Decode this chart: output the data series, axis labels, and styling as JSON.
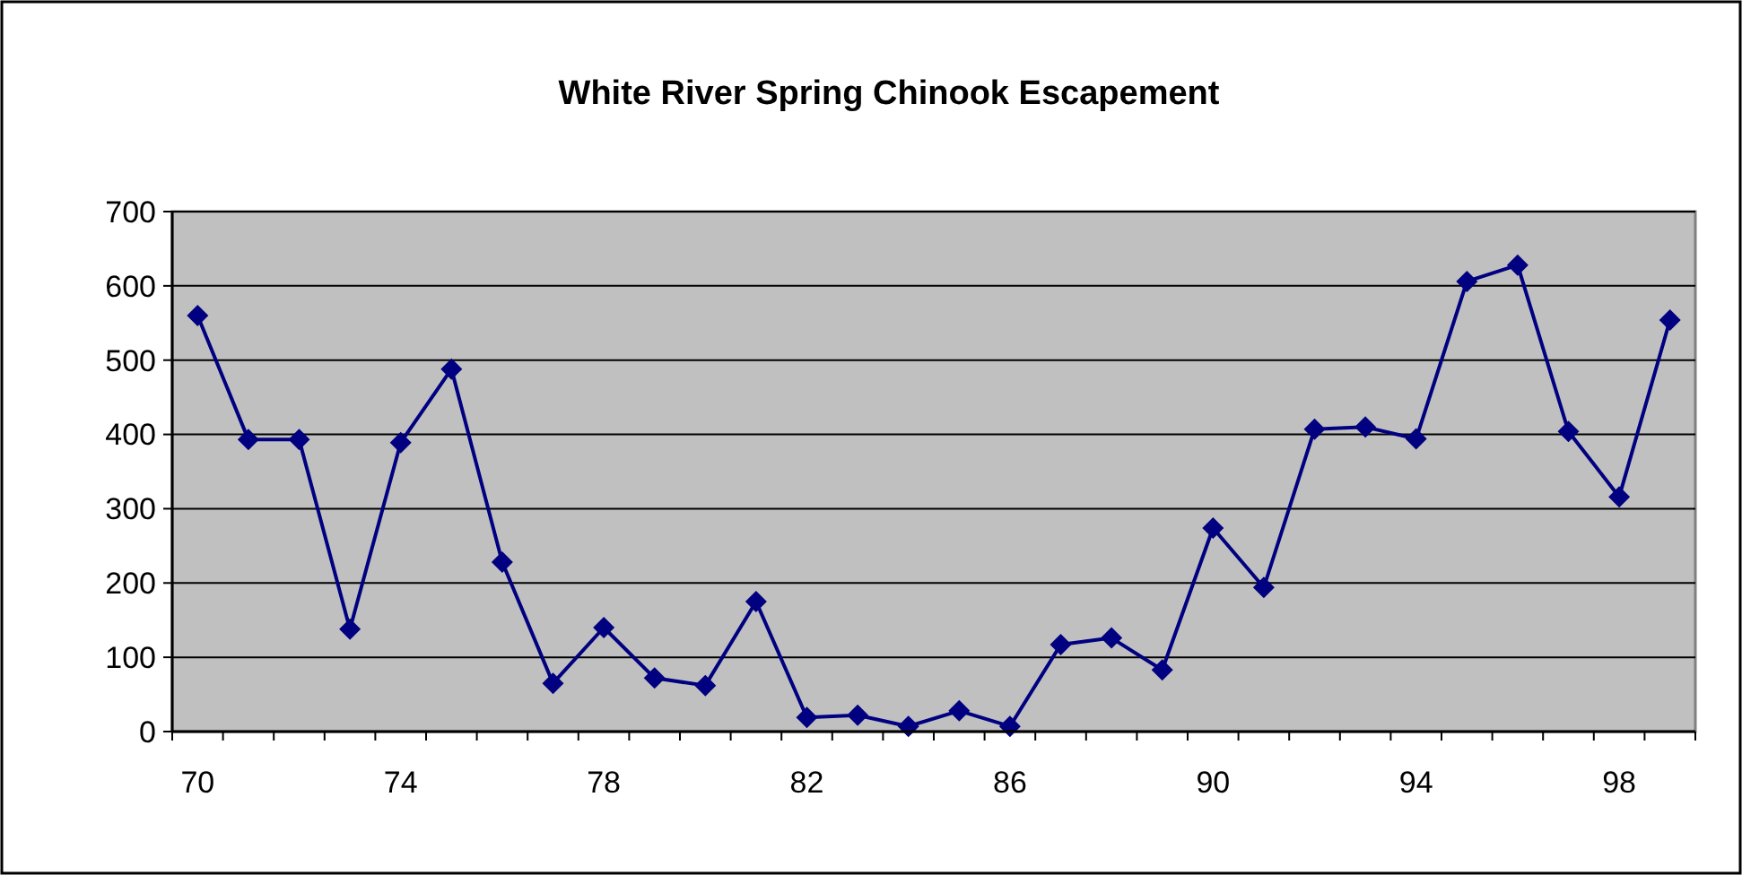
{
  "chart_data": {
    "type": "line",
    "title": "White River Spring Chinook Escapement",
    "categories": [
      "70",
      null,
      null,
      null,
      "74",
      null,
      null,
      null,
      "78",
      null,
      null,
      null,
      "82",
      null,
      null,
      null,
      "86",
      null,
      null,
      null,
      "90",
      null,
      null,
      null,
      "94",
      null,
      null,
      null,
      "98",
      null
    ],
    "series": [
      {
        "color": "#000080",
        "values": [
          560,
          393,
          393,
          138,
          389,
          488,
          228,
          65,
          140,
          72,
          62,
          175,
          19,
          22,
          7,
          28,
          7,
          117,
          126,
          83,
          274,
          194,
          407,
          410,
          394,
          606,
          628,
          404,
          316,
          554
        ]
      }
    ],
    "ylim": [
      0,
      700
    ],
    "yticks": [
      0,
      100,
      200,
      300,
      400,
      500,
      600,
      700
    ],
    "grid": "y",
    "marker": "diamond",
    "line_style": "solid"
  }
}
